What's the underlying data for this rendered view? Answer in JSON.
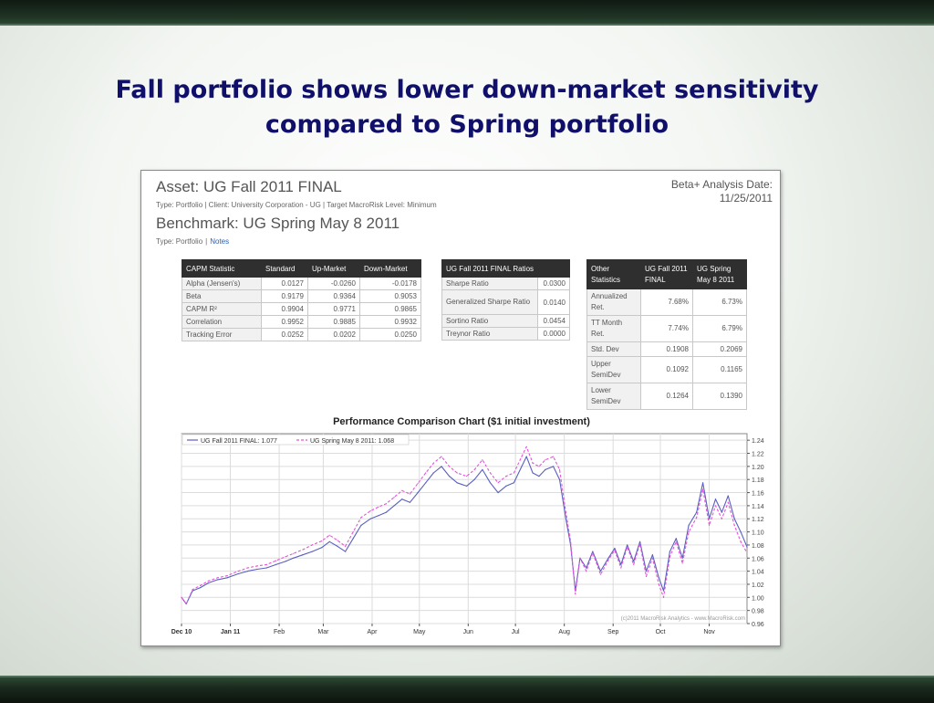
{
  "slide": {
    "title_line1": "Fall portfolio shows lower down-market sensitivity",
    "title_line2": "compared to Spring portfolio"
  },
  "report": {
    "asset_title": "Asset: UG Fall 2011 FINAL",
    "asset_meta": "Type: Portfolio | Client: University Corporation - UG | Target MacroRisk Level: Minimum",
    "benchmark_title": "Benchmark: UG Spring May 8 2011",
    "benchmark_type": "Type: Portfolio",
    "benchmark_sep": "|",
    "notes_link": "Notes",
    "date_label": "Beta+ Analysis Date:",
    "date_value": "11/25/2011"
  },
  "capm_table": {
    "headers": [
      "CAPM Statistic",
      "Standard",
      "Up-Market",
      "Down-Market"
    ],
    "rows": [
      [
        "Alpha (Jensen's)",
        "0.0127",
        "-0.0260",
        "-0.0178"
      ],
      [
        "Beta",
        "0.9179",
        "0.9364",
        "0.9053"
      ],
      [
        "CAPM R²",
        "0.9904",
        "0.9771",
        "0.9865"
      ],
      [
        "Correlation",
        "0.9952",
        "0.9885",
        "0.9932"
      ],
      [
        "Tracking Error",
        "0.0252",
        "0.0202",
        "0.0250"
      ]
    ]
  },
  "ratios_table": {
    "header": "UG Fall 2011 FINAL Ratios",
    "rows": [
      [
        "Sharpe Ratio",
        "0.0300"
      ],
      [
        "Generalized Sharpe Ratio",
        "0.0140"
      ],
      [
        "Sortino Ratio",
        "0.0454"
      ],
      [
        "Treynor Ratio",
        "0.0000"
      ]
    ]
  },
  "other_table": {
    "headers": [
      "Other Statistics",
      "UG Fall 2011 FINAL",
      "UG Spring May 8 2011"
    ],
    "rows": [
      [
        "Annualized Ret.",
        "7.68%",
        "6.73%"
      ],
      [
        "TT Month Ret.",
        "7.74%",
        "6.79%"
      ],
      [
        "Std. Dev",
        "0.1908",
        "0.2069"
      ],
      [
        "Upper SemiDev",
        "0.1092",
        "0.1165"
      ],
      [
        "Lower SemiDev",
        "0.1264",
        "0.1390"
      ]
    ]
  },
  "chart_data": {
    "type": "line",
    "title": "Performance Comparison Chart ($1 initial investment)",
    "watermark": "(c)2011 MacroRisk Analytics - www.MacroRisk.com",
    "x_tick_labels": [
      "Dec 10",
      "Jan 11",
      "Feb",
      "Mar",
      "Apr",
      "May",
      "Jun",
      "Jul",
      "Aug",
      "Sep",
      "Oct",
      "Nov"
    ],
    "x_tick_dates": [
      "2010-12-01",
      "2011-01-01",
      "2011-02-01",
      "2011-03-01",
      "2011-04-01",
      "2011-05-01",
      "2011-06-01",
      "2011-07-01",
      "2011-08-01",
      "2011-09-01",
      "2011-10-01",
      "2011-11-01"
    ],
    "xlim": [
      "2010-12-01",
      "2011-11-25"
    ],
    "ylim": [
      0.96,
      1.25
    ],
    "y_ticks": [
      0.96,
      0.98,
      1.0,
      1.02,
      1.04,
      1.06,
      1.08,
      1.1,
      1.12,
      1.14,
      1.16,
      1.18,
      1.2,
      1.22,
      1.24
    ],
    "grid": true,
    "legend_position": "top-left",
    "series": [
      {
        "name": "UG Fall 2011 FINAL: 1.077",
        "color": "#5a5fc0",
        "style": "solid",
        "points": [
          [
            "2010-12-01",
            1.0
          ],
          [
            "2010-12-04",
            0.99
          ],
          [
            "2010-12-08",
            1.01
          ],
          [
            "2010-12-13",
            1.015
          ],
          [
            "2010-12-18",
            1.022
          ],
          [
            "2010-12-24",
            1.027
          ],
          [
            "2010-12-30",
            1.03
          ],
          [
            "2011-01-06",
            1.036
          ],
          [
            "2011-01-12",
            1.04
          ],
          [
            "2011-01-18",
            1.043
          ],
          [
            "2011-01-24",
            1.045
          ],
          [
            "2011-01-30",
            1.05
          ],
          [
            "2011-02-05",
            1.055
          ],
          [
            "2011-02-10",
            1.06
          ],
          [
            "2011-02-16",
            1.065
          ],
          [
            "2011-02-22",
            1.07
          ],
          [
            "2011-02-28",
            1.076
          ],
          [
            "2011-03-05",
            1.085
          ],
          [
            "2011-03-10",
            1.078
          ],
          [
            "2011-03-15",
            1.07
          ],
          [
            "2011-03-20",
            1.09
          ],
          [
            "2011-03-25",
            1.11
          ],
          [
            "2011-03-31",
            1.12
          ],
          [
            "2011-04-05",
            1.125
          ],
          [
            "2011-04-10",
            1.13
          ],
          [
            "2011-04-15",
            1.14
          ],
          [
            "2011-04-20",
            1.15
          ],
          [
            "2011-04-25",
            1.145
          ],
          [
            "2011-04-30",
            1.16
          ],
          [
            "2011-05-05",
            1.175
          ],
          [
            "2011-05-10",
            1.19
          ],
          [
            "2011-05-15",
            1.2
          ],
          [
            "2011-05-20",
            1.185
          ],
          [
            "2011-05-25",
            1.175
          ],
          [
            "2011-05-31",
            1.17
          ],
          [
            "2011-06-05",
            1.18
          ],
          [
            "2011-06-10",
            1.195
          ],
          [
            "2011-06-15",
            1.175
          ],
          [
            "2011-06-20",
            1.16
          ],
          [
            "2011-06-25",
            1.17
          ],
          [
            "2011-06-30",
            1.175
          ],
          [
            "2011-07-05",
            1.2
          ],
          [
            "2011-07-08",
            1.215
          ],
          [
            "2011-07-12",
            1.19
          ],
          [
            "2011-07-16",
            1.185
          ],
          [
            "2011-07-20",
            1.195
          ],
          [
            "2011-07-25",
            1.2
          ],
          [
            "2011-07-29",
            1.18
          ],
          [
            "2011-08-02",
            1.12
          ],
          [
            "2011-08-05",
            1.08
          ],
          [
            "2011-08-08",
            1.01
          ],
          [
            "2011-08-11",
            1.06
          ],
          [
            "2011-08-15",
            1.045
          ],
          [
            "2011-08-19",
            1.07
          ],
          [
            "2011-08-24",
            1.04
          ],
          [
            "2011-08-29",
            1.06
          ],
          [
            "2011-09-02",
            1.075
          ],
          [
            "2011-09-06",
            1.05
          ],
          [
            "2011-09-10",
            1.08
          ],
          [
            "2011-09-14",
            1.055
          ],
          [
            "2011-09-18",
            1.085
          ],
          [
            "2011-09-22",
            1.04
          ],
          [
            "2011-09-26",
            1.065
          ],
          [
            "2011-09-30",
            1.03
          ],
          [
            "2011-10-03",
            1.01
          ],
          [
            "2011-10-07",
            1.07
          ],
          [
            "2011-10-11",
            1.09
          ],
          [
            "2011-10-15",
            1.06
          ],
          [
            "2011-10-19",
            1.11
          ],
          [
            "2011-10-24",
            1.13
          ],
          [
            "2011-10-28",
            1.175
          ],
          [
            "2011-11-01",
            1.12
          ],
          [
            "2011-11-05",
            1.15
          ],
          [
            "2011-11-09",
            1.13
          ],
          [
            "2011-11-13",
            1.155
          ],
          [
            "2011-11-17",
            1.12
          ],
          [
            "2011-11-21",
            1.1
          ],
          [
            "2011-11-25",
            1.077
          ]
        ]
      },
      {
        "name": "UG Spring May 8 2011: 1.068",
        "color": "#e254d8",
        "style": "dashed",
        "points": [
          [
            "2010-12-01",
            1.0
          ],
          [
            "2010-12-04",
            0.99
          ],
          [
            "2010-12-08",
            1.012
          ],
          [
            "2010-12-13",
            1.018
          ],
          [
            "2010-12-18",
            1.025
          ],
          [
            "2010-12-24",
            1.03
          ],
          [
            "2010-12-30",
            1.033
          ],
          [
            "2011-01-06",
            1.04
          ],
          [
            "2011-01-12",
            1.045
          ],
          [
            "2011-01-18",
            1.048
          ],
          [
            "2011-01-24",
            1.05
          ],
          [
            "2011-01-30",
            1.056
          ],
          [
            "2011-02-05",
            1.062
          ],
          [
            "2011-02-10",
            1.067
          ],
          [
            "2011-02-16",
            1.073
          ],
          [
            "2011-02-22",
            1.08
          ],
          [
            "2011-02-28",
            1.086
          ],
          [
            "2011-03-05",
            1.095
          ],
          [
            "2011-03-10",
            1.087
          ],
          [
            "2011-03-15",
            1.078
          ],
          [
            "2011-03-20",
            1.1
          ],
          [
            "2011-03-25",
            1.122
          ],
          [
            "2011-03-31",
            1.132
          ],
          [
            "2011-04-05",
            1.138
          ],
          [
            "2011-04-10",
            1.143
          ],
          [
            "2011-04-15",
            1.153
          ],
          [
            "2011-04-20",
            1.163
          ],
          [
            "2011-04-25",
            1.158
          ],
          [
            "2011-04-30",
            1.174
          ],
          [
            "2011-05-05",
            1.19
          ],
          [
            "2011-05-10",
            1.205
          ],
          [
            "2011-05-15",
            1.215
          ],
          [
            "2011-05-20",
            1.2
          ],
          [
            "2011-05-25",
            1.19
          ],
          [
            "2011-05-31",
            1.185
          ],
          [
            "2011-06-05",
            1.195
          ],
          [
            "2011-06-10",
            1.21
          ],
          [
            "2011-06-15",
            1.19
          ],
          [
            "2011-06-20",
            1.175
          ],
          [
            "2011-06-25",
            1.185
          ],
          [
            "2011-06-30",
            1.19
          ],
          [
            "2011-07-05",
            1.215
          ],
          [
            "2011-07-08",
            1.23
          ],
          [
            "2011-07-12",
            1.205
          ],
          [
            "2011-07-16",
            1.2
          ],
          [
            "2011-07-20",
            1.21
          ],
          [
            "2011-07-25",
            1.215
          ],
          [
            "2011-07-29",
            1.195
          ],
          [
            "2011-08-02",
            1.13
          ],
          [
            "2011-08-05",
            1.085
          ],
          [
            "2011-08-08",
            1.005
          ],
          [
            "2011-08-11",
            1.06
          ],
          [
            "2011-08-15",
            1.04
          ],
          [
            "2011-08-19",
            1.068
          ],
          [
            "2011-08-24",
            1.035
          ],
          [
            "2011-08-29",
            1.057
          ],
          [
            "2011-09-02",
            1.072
          ],
          [
            "2011-09-06",
            1.045
          ],
          [
            "2011-09-10",
            1.077
          ],
          [
            "2011-09-14",
            1.05
          ],
          [
            "2011-09-18",
            1.082
          ],
          [
            "2011-09-22",
            1.032
          ],
          [
            "2011-09-26",
            1.06
          ],
          [
            "2011-09-30",
            1.02
          ],
          [
            "2011-10-03",
            1.0
          ],
          [
            "2011-10-07",
            1.062
          ],
          [
            "2011-10-11",
            1.085
          ],
          [
            "2011-10-15",
            1.052
          ],
          [
            "2011-10-19",
            1.1
          ],
          [
            "2011-10-24",
            1.122
          ],
          [
            "2011-10-28",
            1.165
          ],
          [
            "2011-11-01",
            1.11
          ],
          [
            "2011-11-05",
            1.14
          ],
          [
            "2011-11-09",
            1.12
          ],
          [
            "2011-11-13",
            1.145
          ],
          [
            "2011-11-17",
            1.11
          ],
          [
            "2011-11-21",
            1.085
          ],
          [
            "2011-11-25",
            1.068
          ]
        ]
      }
    ]
  }
}
